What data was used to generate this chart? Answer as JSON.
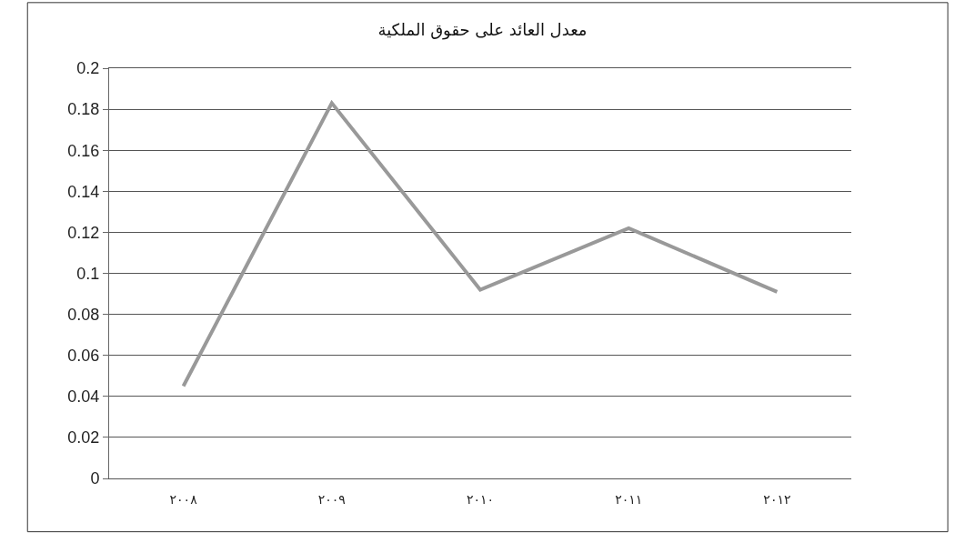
{
  "chart_data": {
    "type": "line",
    "title": "معدل العائد على حقوق الملكية",
    "categories": [
      "٢٠٠٨",
      "٢٠٠٩",
      "٢٠١٠",
      "٢٠١١",
      "٢٠١٢"
    ],
    "series": [
      {
        "color": "#999999",
        "values": [
          0.045,
          0.183,
          0.092,
          0.122,
          0.091
        ]
      }
    ],
    "ylim": [
      0,
      0.2
    ],
    "yticks": [
      0,
      0.02,
      0.04,
      0.06,
      0.08,
      0.1,
      0.12,
      0.14,
      0.16,
      0.18,
      0.2
    ],
    "grid": "y",
    "marker": "none",
    "line_style": "solid"
  }
}
